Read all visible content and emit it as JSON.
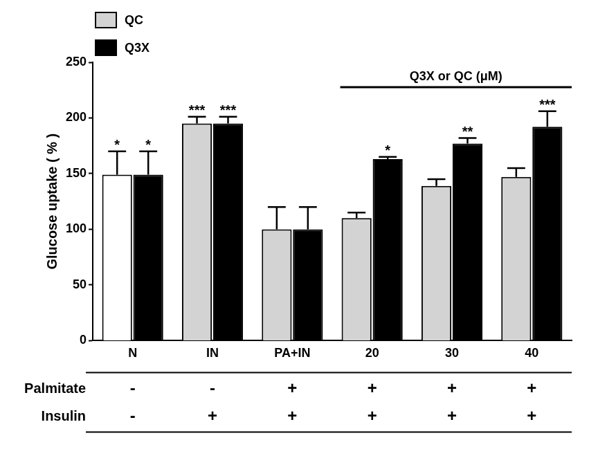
{
  "chart_data": {
    "type": "bar",
    "categories": [
      "N",
      "IN",
      "PA+IN",
      "20",
      "30",
      "40"
    ],
    "series": [
      {
        "name": "QC",
        "color": "#d3d3d3",
        "colors": [
          "#ffffff",
          "#d3d3d3",
          "#d3d3d3",
          "#d3d3d3",
          "#d3d3d3",
          "#d3d3d3"
        ],
        "values": [
          149,
          195,
          100,
          110,
          139,
          147
        ],
        "errors": [
          21,
          6,
          20,
          5,
          6,
          8
        ],
        "significance": [
          "*",
          "***",
          null,
          null,
          null,
          null
        ]
      },
      {
        "name": "Q3X",
        "color": "#000000",
        "values": [
          149,
          195,
          100,
          163,
          177,
          192
        ],
        "errors": [
          21,
          6,
          20,
          2,
          5,
          14
        ],
        "significance": [
          "*",
          "***",
          null,
          "*",
          "**",
          "***"
        ]
      }
    ],
    "y_label": "Glucose uptake ( % )",
    "ylim": [
      0,
      250
    ],
    "yticks": [
      0,
      50,
      100,
      150,
      200,
      250
    ],
    "grid": false,
    "legend": "top-left",
    "bracket": {
      "label": "Q3X or QC (μM)",
      "from": "20",
      "to": "40"
    },
    "conditions": [
      {
        "name": "Palmitate",
        "values": [
          "-",
          "-",
          "+",
          "+",
          "+",
          "+"
        ]
      },
      {
        "name": "Insulin",
        "values": [
          "-",
          "+",
          "+",
          "+",
          "+",
          "+"
        ]
      }
    ]
  }
}
